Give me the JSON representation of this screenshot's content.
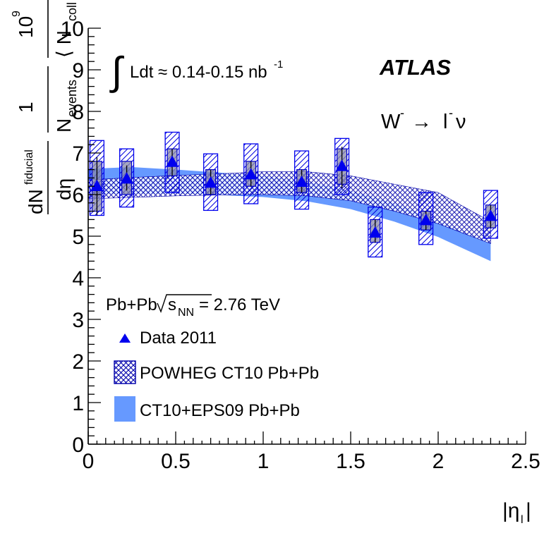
{
  "chart_data": {
    "type": "scatter",
    "title": "",
    "xlabel": "|η_l|",
    "ylabel": "dN^fiducial/dη · 1/N_events · 10^9/⟨N_coll⟩",
    "xlim": [
      0,
      2.5
    ],
    "ylim": [
      0,
      10
    ],
    "x_ticks": [
      0,
      0.5,
      1,
      1.5,
      2,
      2.5
    ],
    "x_tick_labels": [
      "0",
      "0.5",
      "1",
      "1.5",
      "2",
      "2.5"
    ],
    "y_ticks": [
      0,
      1,
      2,
      3,
      4,
      5,
      6,
      7,
      8,
      9,
      10
    ],
    "y_tick_labels": [
      "0",
      "1",
      "2",
      "3",
      "4",
      "5",
      "6",
      "7",
      "8",
      "9",
      "10"
    ],
    "data": {
      "name": "Data 2011",
      "color": "#0000ee",
      "points": [
        {
          "x": 0.05,
          "xerr": 0.04,
          "y": 6.2,
          "stat": [
            5.5,
            6.9
          ],
          "sys": [
            5.6,
            6.8
          ],
          "total": [
            5.5,
            7.3
          ]
        },
        {
          "x": 0.22,
          "xerr": 0.04,
          "y": 6.38,
          "stat": [
            6.1,
            6.7
          ],
          "sys": [
            6.0,
            6.8
          ],
          "total": [
            5.7,
            7.1
          ]
        },
        {
          "x": 0.48,
          "xerr": 0.04,
          "y": 6.78,
          "stat": [
            6.45,
            7.1
          ],
          "sys": [
            6.45,
            7.1
          ],
          "total": [
            6.05,
            7.5
          ]
        },
        {
          "x": 0.7,
          "xerr": 0.04,
          "y": 6.28,
          "stat": [
            6.0,
            6.6
          ],
          "sys": [
            6.0,
            6.6
          ],
          "total": [
            5.62,
            6.98
          ]
        },
        {
          "x": 0.93,
          "xerr": 0.04,
          "y": 6.48,
          "stat": [
            6.2,
            6.8
          ],
          "sys": [
            6.2,
            6.8
          ],
          "total": [
            5.78,
            7.22
          ]
        },
        {
          "x": 1.22,
          "xerr": 0.04,
          "y": 6.3,
          "stat": [
            6.05,
            6.6
          ],
          "sys": [
            6.05,
            6.6
          ],
          "total": [
            5.65,
            7.05
          ]
        },
        {
          "x": 1.45,
          "xerr": 0.04,
          "y": 6.68,
          "stat": [
            6.15,
            7.15
          ],
          "sys": [
            6.25,
            7.1
          ],
          "total": [
            6.0,
            7.35
          ]
        },
        {
          "x": 1.64,
          "xerr": 0.04,
          "y": 5.08,
          "stat": [
            4.85,
            5.4
          ],
          "sys": [
            4.85,
            5.4
          ],
          "total": [
            4.5,
            5.7
          ]
        },
        {
          "x": 1.93,
          "xerr": 0.04,
          "y": 5.38,
          "stat": [
            5.15,
            5.6
          ],
          "sys": [
            5.15,
            5.6
          ],
          "total": [
            4.8,
            6.05
          ]
        },
        {
          "x": 2.3,
          "xerr": 0.04,
          "y": 5.48,
          "stat": [
            5.2,
            5.75
          ],
          "sys": [
            5.2,
            5.75
          ],
          "total": [
            4.95,
            6.1
          ]
        }
      ]
    },
    "powheg_band": {
      "name": "POWHEG CT10 Pb+Pb",
      "color": "#0000aa",
      "x": [
        0.0,
        0.25,
        0.5,
        0.75,
        1.0,
        1.25,
        1.5,
        1.75,
        2.0,
        2.3
      ],
      "lower": [
        5.9,
        5.93,
        5.97,
        5.99,
        6.0,
        5.97,
        5.85,
        5.6,
        5.3,
        4.82
      ],
      "upper": [
        6.35,
        6.41,
        6.46,
        6.5,
        6.55,
        6.55,
        6.45,
        6.25,
        6.05,
        5.35
      ]
    },
    "eps09_band": {
      "name": "CT10+EPS09 Pb+Pb",
      "color": "#6699ff",
      "x": [
        0.0,
        0.25,
        0.5,
        0.75,
        1.0,
        1.25,
        1.5,
        1.75,
        2.0,
        2.3
      ],
      "lower": [
        6.0,
        6.02,
        6.02,
        5.99,
        5.94,
        5.84,
        5.65,
        5.35,
        4.98,
        4.4
      ],
      "upper": [
        6.62,
        6.66,
        6.6,
        6.53,
        6.45,
        6.32,
        6.1,
        5.8,
        5.38,
        4.85
      ]
    },
    "annotations": {
      "lumi_integral": "∫",
      "lumi_text": "Ldt ≈ 0.14-0.15 nb",
      "lumi_sup": "-1",
      "experiment": "ATLAS",
      "process_w": "W",
      "process_w_sup": "-",
      "process_arrow": "→",
      "process_l": "l",
      "process_l_sup": "-",
      "process_nu": "ν",
      "system_prefix": "Pb+Pb",
      "system_s": "s",
      "system_sub": "NN",
      "system_value": " = 2.76 TeV"
    },
    "legend": [
      {
        "label": "Data 2011",
        "marker": "triangle"
      },
      {
        "label": "POWHEG CT10 Pb+Pb",
        "marker": "hatched-box"
      },
      {
        "label": "CT10+EPS09 Pb+Pb",
        "marker": "filled-box"
      }
    ],
    "axis_title_parts": {
      "x_eta": "|η",
      "x_sub": "l",
      "x_close": "|",
      "y_dN": "dN",
      "y_fid": "fiducial",
      "y_deta": "dη",
      "y_one": "1",
      "y_nev": "N",
      "y_nev_sub": "events",
      "y_ten": "10",
      "y_nine": "9",
      "y_ncoll": "⟨ N",
      "y_ncoll_sub": "coll",
      "y_ncoll_close": "⟩"
    }
  }
}
